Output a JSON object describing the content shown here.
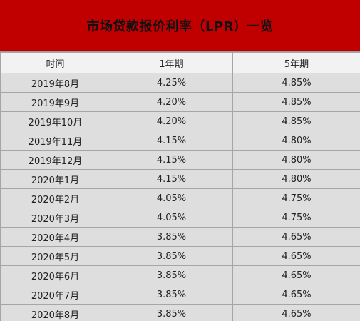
{
  "title": "市场贷款报价利率（LPR）一览",
  "colors": {
    "title_background": "#c00000",
    "header_background": "#f2f2f2",
    "row_background": "#dedede",
    "grid_line": "#a6a6a6"
  },
  "table": {
    "headers": [
      "时间",
      "1年期",
      "5年期"
    ],
    "rows": [
      [
        "2019年8月",
        "4.25%",
        "4.85%"
      ],
      [
        "2019年9月",
        "4.20%",
        "4.85%"
      ],
      [
        "2019年10月",
        "4.20%",
        "4.85%"
      ],
      [
        "2019年11月",
        "4.15%",
        "4.80%"
      ],
      [
        "2019年12月",
        "4.15%",
        "4.80%"
      ],
      [
        "2020年1月",
        "4.15%",
        "4.80%"
      ],
      [
        "2020年2月",
        "4.05%",
        "4.75%"
      ],
      [
        "2020年3月",
        "4.05%",
        "4.75%"
      ],
      [
        "2020年4月",
        "3.85%",
        "4.65%"
      ],
      [
        "2020年5月",
        "3.85%",
        "4.65%"
      ],
      [
        "2020年6月",
        "3.85%",
        "4.65%"
      ],
      [
        "2020年7月",
        "3.85%",
        "4.65%"
      ],
      [
        "2020年8月",
        "3.85%",
        "4.65%"
      ]
    ]
  }
}
